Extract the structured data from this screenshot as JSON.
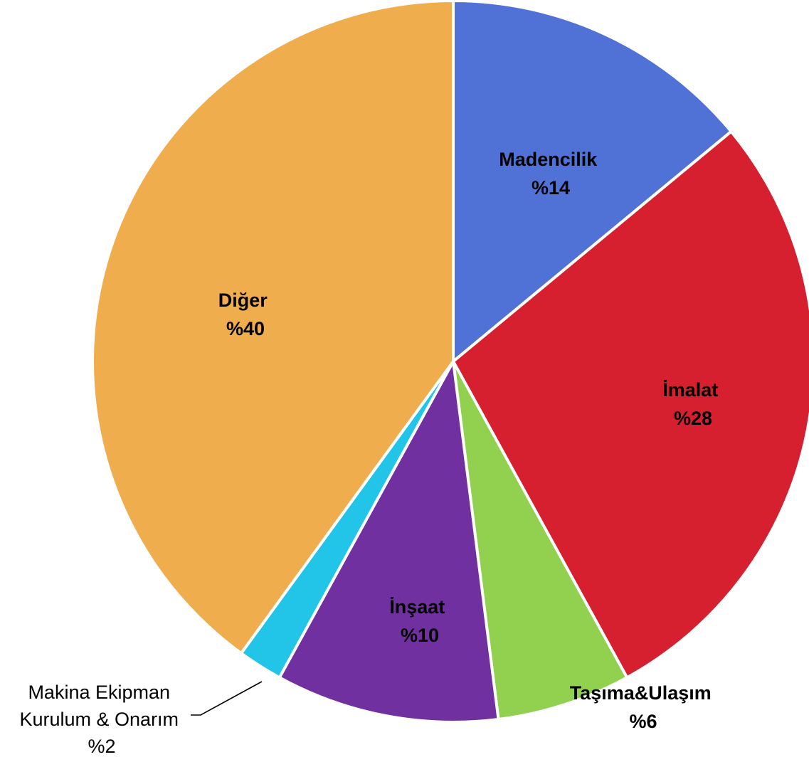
{
  "chart_data": {
    "type": "pie",
    "start_angle_deg": 0,
    "direction": "clockwise",
    "slices": [
      {
        "label": "Madencilik",
        "value_label": "%14",
        "value": 14,
        "color": "#5072d6"
      },
      {
        "label": "İmalat",
        "value_label": "%28",
        "value": 28,
        "color": "#d6202f"
      },
      {
        "label": "Taşıma&Ulaşım",
        "value_label": "%6",
        "value": 6,
        "color": "#92d050"
      },
      {
        "label": "İnşaat",
        "value_label": "%10",
        "value": 10,
        "color": "#7030a0"
      },
      {
        "label": "Makina Ekipman",
        "label_line2": "Kurulum & Onarım",
        "value_label": "%2",
        "value": 2,
        "color": "#22c4e8"
      },
      {
        "label": "Diğer",
        "value_label": "%40",
        "value": 40,
        "color": "#f0ad4e"
      }
    ]
  }
}
